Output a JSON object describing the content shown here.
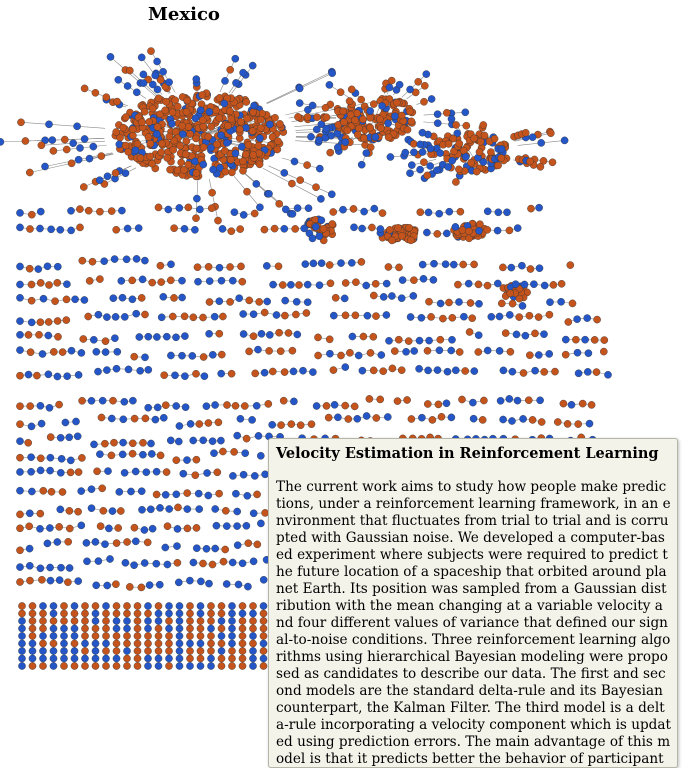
{
  "page": {
    "title": "Mexico"
  },
  "colors": {
    "node_a": "#2456c8",
    "node_b": "#c4541c",
    "edge": "#8a8a8a",
    "node_stroke": "#333333"
  },
  "tooltip": {
    "title": "Velocity Estimation in Reinforcement Learning",
    "abstract": "The current work aims to study how people make predictions, under a reinforcement learning framework, in an environment that fluctuates from trial to trial and is corrupted with Gaussian noise. We developed a computer-based experiment where subjects were required to predict the future location of a spaceship that orbited around planet Earth. Its position was sampled from a Gaussian distribution with the mean changing at a variable velocity and four different values of variance that defined our signal-to-noise conditions. Three reinforcement learning algorithms using hierarchical Bayesian modeling were proposed as candidates to describe our data. The first and second models are the standard delta-rule and its Bayesian counterpart, the Kalman Filter. The third model is a delta-rule incorporating a velocity component which is updated using prediction errors. The main advantage of this model is that it predicts better the behavior of participants."
  }
}
